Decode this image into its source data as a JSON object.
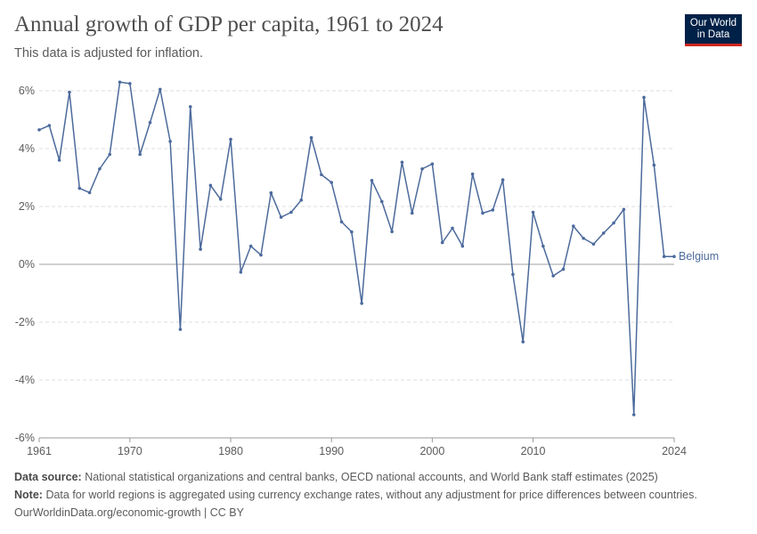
{
  "header": {
    "title": "Annual growth of GDP per capita, 1961 to 2024",
    "subtitle": "This data is adjusted for inflation."
  },
  "logo": {
    "line1": "Our World",
    "line2": "in Data"
  },
  "footer": {
    "source_label": "Data source:",
    "source_text": "National statistical organizations and central banks, OECD national accounts, and World Bank staff estimates (2025)",
    "note_label": "Note:",
    "note_text": "Data for world regions is aggregated using currency exchange rates, without any adjustment for price differences between countries.",
    "link": "OurWorldinData.org/economic-growth | CC BY"
  },
  "colors": {
    "series": "#4c6a9c",
    "grid": "#dddddd",
    "zero": "#a1a1a1",
    "text": "#5b5b5b"
  },
  "chart_data": {
    "type": "line",
    "title": "Annual growth of GDP per capita, 1961 to 2024",
    "subtitle": "This data is adjusted for inflation.",
    "ylim": [
      -6,
      6
    ],
    "xlim": [
      1961,
      2024
    ],
    "yticks": [
      -6,
      -4,
      -2,
      0,
      2,
      4,
      6
    ],
    "ytick_labels": [
      "-6%",
      "-4%",
      "-2%",
      "0%",
      "2%",
      "4%",
      "6%"
    ],
    "xticks": [
      1961,
      1970,
      1980,
      1990,
      2000,
      2010,
      2024
    ],
    "xtick_labels": [
      "1961",
      "1970",
      "1980",
      "1990",
      "2000",
      "2010",
      "2024"
    ],
    "grid": "horizontal dashed",
    "series": [
      {
        "name": "Belgium",
        "x": [
          1961,
          1962,
          1963,
          1964,
          1965,
          1966,
          1967,
          1968,
          1969,
          1970,
          1971,
          1972,
          1973,
          1974,
          1975,
          1976,
          1977,
          1978,
          1979,
          1980,
          1981,
          1982,
          1983,
          1984,
          1985,
          1986,
          1987,
          1988,
          1989,
          1990,
          1991,
          1992,
          1993,
          1994,
          1995,
          1996,
          1997,
          1998,
          1999,
          2000,
          2001,
          2002,
          2003,
          2004,
          2005,
          2006,
          2007,
          2008,
          2009,
          2010,
          2011,
          2012,
          2013,
          2014,
          2015,
          2016,
          2017,
          2018,
          2019,
          2020,
          2021,
          2022,
          2023,
          2024
        ],
        "y": [
          4.65,
          4.8,
          3.6,
          5.95,
          2.63,
          2.48,
          3.3,
          3.8,
          6.3,
          6.25,
          3.8,
          4.9,
          6.05,
          4.25,
          -2.25,
          5.45,
          0.52,
          2.73,
          2.25,
          4.32,
          -0.27,
          0.63,
          0.32,
          2.47,
          1.63,
          1.8,
          2.22,
          4.38,
          3.1,
          2.83,
          1.47,
          1.12,
          -1.35,
          2.9,
          2.17,
          1.13,
          3.53,
          1.77,
          3.3,
          3.47,
          0.75,
          1.25,
          0.63,
          3.12,
          1.77,
          1.88,
          2.92,
          -0.35,
          -2.68,
          1.8,
          0.63,
          -0.4,
          -0.17,
          1.32,
          0.9,
          0.7,
          1.08,
          1.43,
          1.9,
          -5.2,
          5.77,
          3.43,
          0.27,
          0.27
        ]
      }
    ]
  }
}
